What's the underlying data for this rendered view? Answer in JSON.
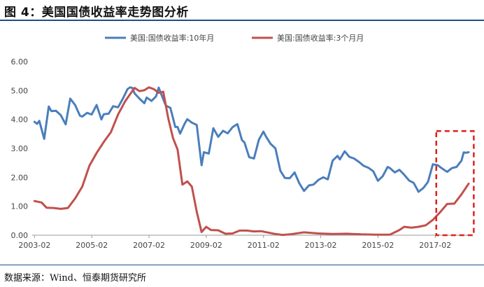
{
  "figure": {
    "title": "图 4：美国国债收益率走势图分析",
    "source": "数据来源：Wind、恒泰期货研究所"
  },
  "chart_data": {
    "type": "line",
    "xlabel": "",
    "ylabel": "",
    "xlim": [
      2003.0,
      2018.25
    ],
    "ylim": [
      0,
      6
    ],
    "x_ticks": [
      "2003-02",
      "2005-02",
      "2007-02",
      "2009-02",
      "2011-02",
      "2013-02",
      "2015-02",
      "2017-02"
    ],
    "y_ticks": [
      "0.00",
      "1.00",
      "2.00",
      "3.00",
      "4.00",
      "5.00",
      "6.00"
    ],
    "grid": false,
    "legend": "top",
    "annotation": "red dashed rectangle highlighting 2017-2018",
    "series": [
      {
        "name": "美国:国债收益率:10年月",
        "color": "#4a7ebb",
        "x": [
          2003.08,
          2003.17,
          2003.25,
          2003.42,
          2003.58,
          2003.67,
          2003.83,
          2004.0,
          2004.17,
          2004.33,
          2004.5,
          2004.67,
          2004.75,
          2004.92,
          2005.08,
          2005.25,
          2005.42,
          2005.5,
          2005.67,
          2005.83,
          2006.0,
          2006.17,
          2006.33,
          2006.42,
          2006.5,
          2006.58,
          2006.75,
          2006.92,
          2007.0,
          2007.17,
          2007.33,
          2007.42,
          2007.5,
          2007.67,
          2007.83,
          2008.0,
          2008.08,
          2008.17,
          2008.33,
          2008.42,
          2008.58,
          2008.75,
          2008.92,
          2009.0,
          2009.17,
          2009.33,
          2009.5,
          2009.67,
          2009.83,
          2010.0,
          2010.17,
          2010.33,
          2010.42,
          2010.58,
          2010.75,
          2010.92,
          2011.08,
          2011.17,
          2011.33,
          2011.5,
          2011.67,
          2011.83,
          2012.0,
          2012.17,
          2012.33,
          2012.5,
          2012.67,
          2012.83,
          2013.0,
          2013.17,
          2013.33,
          2013.5,
          2013.67,
          2013.75,
          2013.92,
          2014.08,
          2014.25,
          2014.42,
          2014.58,
          2014.75,
          2014.92,
          2015.08,
          2015.25,
          2015.42,
          2015.5,
          2015.67,
          2015.83,
          2016.0,
          2016.17,
          2016.33,
          2016.5,
          2016.67,
          2016.83,
          2017.0,
          2017.17,
          2017.33,
          2017.5,
          2017.67,
          2017.83,
          2018.0,
          2018.08,
          2018.17,
          2018.25
        ],
        "y": [
          3.92,
          3.85,
          3.95,
          3.33,
          4.45,
          4.29,
          4.3,
          4.15,
          3.83,
          4.72,
          4.5,
          4.13,
          4.1,
          4.23,
          4.17,
          4.5,
          4.0,
          4.18,
          4.2,
          4.46,
          4.42,
          4.72,
          5.05,
          5.11,
          5.09,
          4.9,
          4.72,
          4.56,
          4.76,
          4.64,
          4.8,
          5.1,
          4.9,
          4.48,
          4.4,
          3.74,
          3.74,
          3.51,
          3.86,
          4.01,
          3.89,
          3.81,
          2.42,
          2.87,
          2.82,
          3.7,
          3.4,
          3.61,
          3.52,
          3.73,
          3.84,
          3.29,
          3.2,
          2.7,
          2.65,
          3.3,
          3.58,
          3.41,
          3.16,
          3.0,
          2.23,
          1.98,
          1.97,
          2.17,
          1.8,
          1.53,
          1.72,
          1.75,
          1.91,
          2.0,
          1.93,
          2.58,
          2.74,
          2.62,
          2.9,
          2.71,
          2.65,
          2.53,
          2.4,
          2.33,
          2.21,
          1.88,
          2.04,
          2.36,
          2.32,
          2.17,
          2.26,
          2.09,
          1.89,
          1.81,
          1.5,
          1.63,
          1.84,
          2.45,
          2.42,
          2.3,
          2.19,
          2.32,
          2.36,
          2.58,
          2.86,
          2.85,
          2.87
        ]
      },
      {
        "name": "美国:国债收益率:3个月月",
        "color": "#c0504d",
        "x": [
          2003.08,
          2003.33,
          2003.5,
          2003.75,
          2004.0,
          2004.25,
          2004.5,
          2004.75,
          2005.0,
          2005.25,
          2005.5,
          2005.75,
          2006.0,
          2006.25,
          2006.42,
          2006.58,
          2006.75,
          2006.92,
          2007.08,
          2007.25,
          2007.42,
          2007.58,
          2007.75,
          2007.92,
          2008.08,
          2008.25,
          2008.42,
          2008.58,
          2008.75,
          2008.92,
          2009.08,
          2009.25,
          2009.5,
          2009.75,
          2010.0,
          2010.25,
          2010.5,
          2010.75,
          2011.0,
          2011.25,
          2011.5,
          2011.75,
          2012.0,
          2012.5,
          2013.0,
          2013.5,
          2014.0,
          2014.5,
          2015.0,
          2015.5,
          2015.83,
          2016.0,
          2016.25,
          2016.5,
          2016.75,
          2017.0,
          2017.25,
          2017.5,
          2017.75,
          2018.0,
          2018.25
        ],
        "y": [
          1.18,
          1.13,
          0.95,
          0.94,
          0.91,
          0.94,
          1.27,
          1.68,
          2.4,
          2.84,
          3.22,
          3.56,
          4.17,
          4.63,
          4.87,
          5.09,
          4.98,
          5.01,
          5.11,
          5.05,
          4.92,
          4.96,
          4.06,
          3.36,
          2.96,
          1.75,
          1.86,
          1.68,
          0.81,
          0.11,
          0.29,
          0.18,
          0.17,
          0.05,
          0.06,
          0.16,
          0.16,
          0.13,
          0.14,
          0.09,
          0.04,
          0.01,
          0.03,
          0.1,
          0.06,
          0.04,
          0.05,
          0.03,
          0.02,
          0.02,
          0.18,
          0.29,
          0.26,
          0.29,
          0.34,
          0.53,
          0.79,
          1.08,
          1.09,
          1.41,
          1.78
        ]
      }
    ]
  }
}
